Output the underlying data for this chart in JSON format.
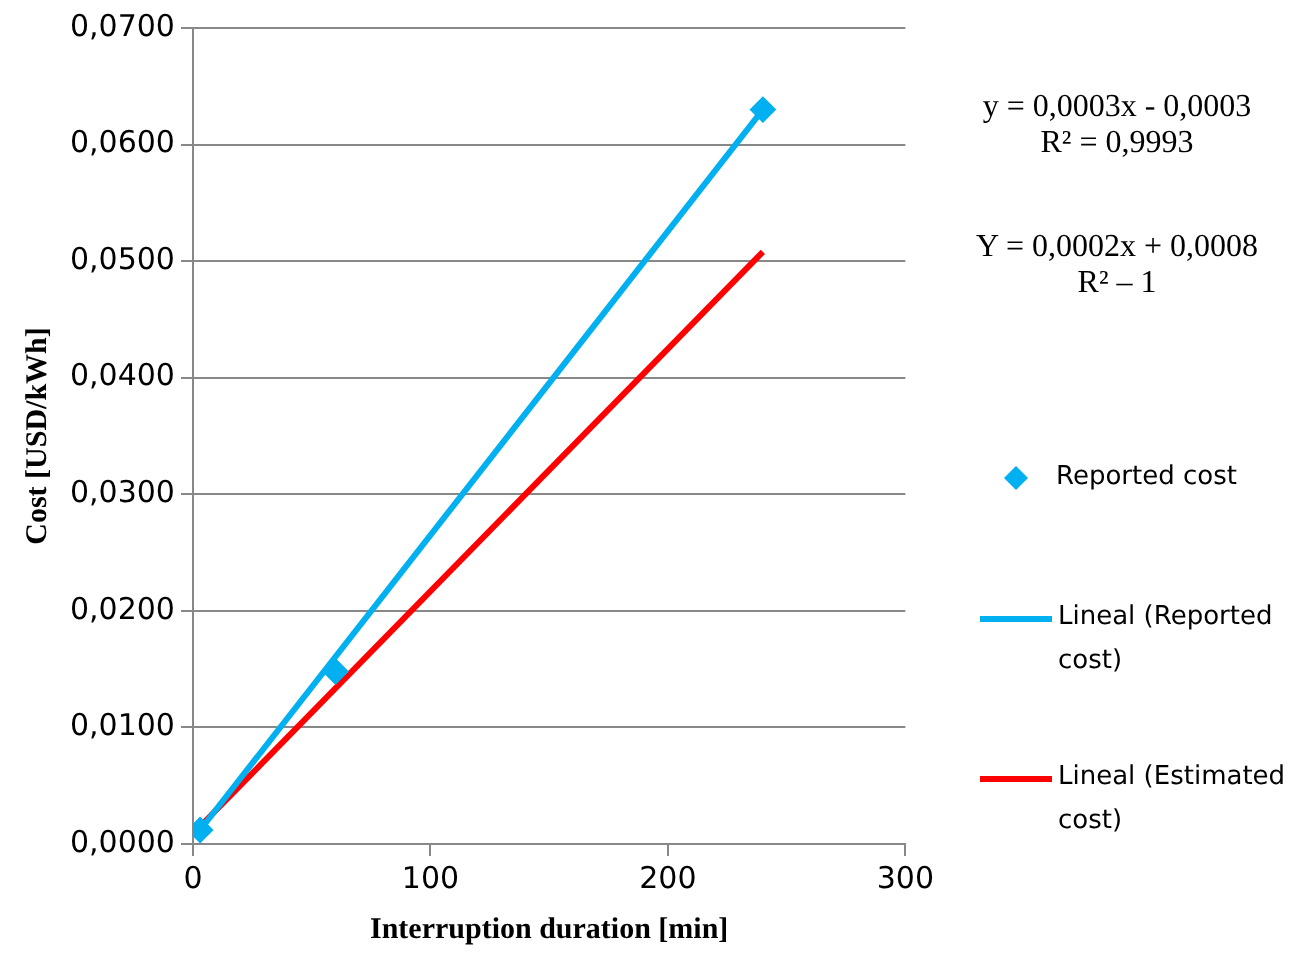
{
  "chart_data": {
    "type": "scatter",
    "xlabel": "Interruption duration [min]",
    "ylabel": "Cost [USD/kWh]",
    "xlim": [
      0,
      300
    ],
    "xticks": [
      0,
      100,
      200,
      300
    ],
    "ylim": [
      0,
      0.07
    ],
    "yticks": [
      {
        "value": 0,
        "label": "0,0000"
      },
      {
        "value": 0.01,
        "label": "0,0100"
      },
      {
        "value": 0.02,
        "label": "0,0200"
      },
      {
        "value": 0.03,
        "label": "0,0300"
      },
      {
        "value": 0.04,
        "label": "0,0400"
      },
      {
        "value": 0.05,
        "label": "0,0500"
      },
      {
        "value": 0.06,
        "label": "0,0600"
      },
      {
        "value": 0.07,
        "label": "0,0700"
      }
    ],
    "grid": "y",
    "legend": "right",
    "marker": "diamond",
    "series": [
      {
        "name": "Reported cost",
        "type": "scatter",
        "color": "#00b0f0",
        "x": [
          3,
          60,
          240
        ],
        "values": [
          0.0012,
          0.0148,
          0.063
        ]
      },
      {
        "name": "Lineal (Reported cost)",
        "type": "line",
        "marker": "none",
        "color": "#00b0f0",
        "x": [
          3,
          240
        ],
        "values": [
          0.0012,
          0.063
        ]
      },
      {
        "name": "Lineal (Estimated cost)",
        "type": "line",
        "marker": "none",
        "color": "#ff0000",
        "x": [
          3,
          240
        ],
        "values": [
          0.0015,
          0.0508
        ]
      }
    ],
    "annotations": [
      "y = 0,0003x - 0,0003\nR² = 0,9993",
      "Y = 0,0002x + 0,0008\nR² – 1"
    ]
  }
}
